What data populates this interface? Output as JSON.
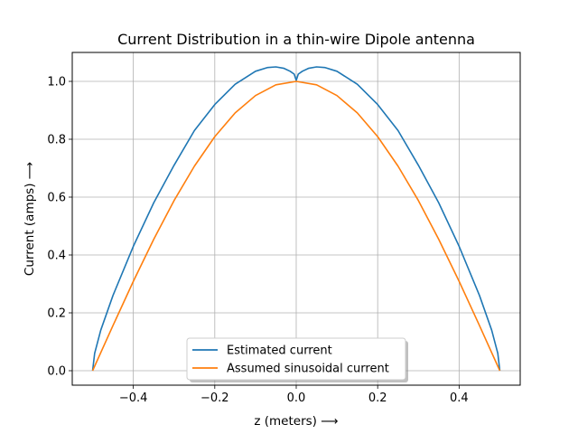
{
  "chart_data": {
    "type": "line",
    "title": "Current Distribution in a thin-wire Dipole antenna",
    "xlabel": "z (meters) ⟶",
    "ylabel": "Current (amps) ⟶",
    "xlim": [
      -0.55,
      0.55
    ],
    "ylim": [
      -0.05,
      1.1
    ],
    "xticks": [
      -0.4,
      -0.2,
      0.0,
      0.2,
      0.4
    ],
    "xtick_labels": [
      "−0.4",
      "−0.2",
      "0.0",
      "0.2",
      "0.4"
    ],
    "yticks": [
      0.0,
      0.2,
      0.4,
      0.6,
      0.8,
      1.0
    ],
    "ytick_labels": [
      "0.0",
      "0.2",
      "0.4",
      "0.6",
      "0.8",
      "1.0"
    ],
    "grid": true,
    "legend_position": "lower center",
    "series": [
      {
        "name": "Estimated current",
        "color": "#1f77b4",
        "x": [
          -0.5,
          -0.495,
          -0.48,
          -0.45,
          -0.4,
          -0.35,
          -0.3,
          -0.25,
          -0.2,
          -0.15,
          -0.1,
          -0.07,
          -0.05,
          -0.03,
          -0.015,
          -0.005,
          0.0,
          0.005,
          0.015,
          0.03,
          0.05,
          0.07,
          0.1,
          0.15,
          0.2,
          0.25,
          0.3,
          0.35,
          0.4,
          0.45,
          0.48,
          0.495,
          0.5
        ],
        "y": [
          0.0,
          0.06,
          0.14,
          0.26,
          0.43,
          0.58,
          0.71,
          0.83,
          0.92,
          0.99,
          1.035,
          1.048,
          1.05,
          1.045,
          1.035,
          1.025,
          1.003,
          1.025,
          1.035,
          1.045,
          1.05,
          1.048,
          1.035,
          0.99,
          0.92,
          0.83,
          0.71,
          0.58,
          0.43,
          0.26,
          0.14,
          0.06,
          0.0
        ]
      },
      {
        "name": "Assumed sinusoidal current",
        "color": "#ff7f0e",
        "x": [
          -0.5,
          -0.45,
          -0.4,
          -0.35,
          -0.3,
          -0.25,
          -0.2,
          -0.15,
          -0.1,
          -0.05,
          0.0,
          0.05,
          0.1,
          0.15,
          0.2,
          0.25,
          0.3,
          0.35,
          0.4,
          0.45,
          0.5
        ],
        "y": [
          0.0,
          0.156,
          0.309,
          0.454,
          0.588,
          0.707,
          0.809,
          0.891,
          0.951,
          0.988,
          1.0,
          0.988,
          0.951,
          0.891,
          0.809,
          0.707,
          0.588,
          0.454,
          0.309,
          0.156,
          0.0
        ]
      }
    ]
  }
}
